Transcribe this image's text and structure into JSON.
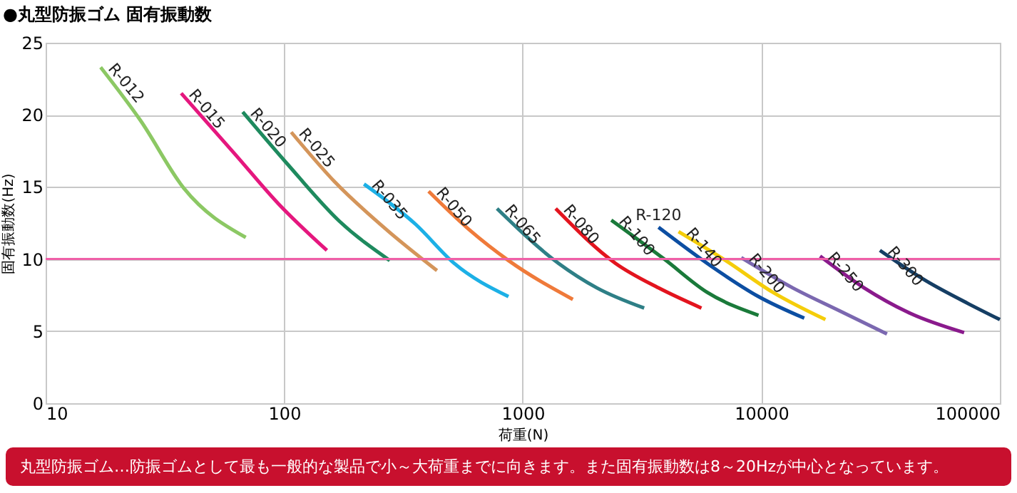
{
  "chart_data": {
    "type": "line",
    "title": "●丸型防振ゴム 固有振動数",
    "xlabel": "荷重(N)",
    "ylabel": "固有振動数(Hz)",
    "log": "x",
    "grid": true,
    "legend": false,
    "xlim": [
      10,
      100000
    ],
    "xticks": [
      10,
      100,
      1000,
      10000,
      100000
    ],
    "ylim": [
      0,
      25
    ],
    "yticks": [
      0,
      5,
      10,
      15,
      20,
      25
    ],
    "ref_lines": [
      {
        "axis": "y",
        "value": 10,
        "color": "#f060a8"
      }
    ],
    "annotations": [
      "丸型防振ゴム…防振ゴムとして最も一般的な製品で小～大荷重までに向きます。また固有振動数は8～20Hzが中心となっています。"
    ],
    "series": [
      {
        "name": "R-012",
        "color": "#8cc864",
        "x": [
          17,
          25,
          38,
          69
        ],
        "values": [
          23.3,
          19.6,
          14.9,
          11.5
        ]
      },
      {
        "name": "R-015",
        "color": "#e5177e",
        "x": [
          37,
          62,
          95,
          151
        ],
        "values": [
          21.5,
          17.3,
          13.8,
          10.6
        ]
      },
      {
        "name": "R-020",
        "color": "#1e8a5e",
        "x": [
          67,
          103,
          171,
          277
        ],
        "values": [
          20.2,
          16.6,
          12.6,
          9.9
        ]
      },
      {
        "name": "R-025",
        "color": "#d4955a",
        "x": [
          107,
          164,
          270,
          437
        ],
        "values": [
          18.8,
          15.3,
          12.0,
          9.2
        ]
      },
      {
        "name": "R-035",
        "color": "#1cb0e6",
        "x": [
          216,
          356,
          516,
          871
        ],
        "values": [
          15.2,
          12.4,
          9.7,
          7.4
        ]
      },
      {
        "name": "R-050",
        "color": "#ef7a3a",
        "x": [
          403,
          600,
          871,
          1622
        ],
        "values": [
          14.7,
          12.0,
          9.9,
          7.2
        ]
      },
      {
        "name": "R-065",
        "color": "#2e7f86",
        "x": [
          780,
          1413,
          2046,
          3228
        ],
        "values": [
          13.5,
          9.7,
          8.0,
          6.6
        ]
      },
      {
        "name": "R-080",
        "color": "#e3141e",
        "x": [
          1374,
          2449,
          3707,
          5610
        ],
        "values": [
          13.5,
          9.7,
          8.0,
          6.6
        ]
      },
      {
        "name": "R-100",
        "color": "#1a7a3a",
        "x": [
          2350,
          3915,
          5916,
          9730
        ],
        "values": [
          12.7,
          10.0,
          7.7,
          6.1
        ]
      },
      {
        "name": "R-120",
        "color": "#0c4ea2",
        "x": [
          3707,
          6170,
          9730,
          15130
        ],
        "values": [
          12.2,
          9.5,
          7.4,
          5.9
        ]
      },
      {
        "name": "R-140",
        "color": "#f5cd0a",
        "x": [
          4497,
          7084,
          11160,
          18570
        ],
        "values": [
          11.9,
          9.9,
          7.7,
          5.8
        ]
      },
      {
        "name": "R-200",
        "color": "#7b68b0",
        "x": [
          8240,
          13550,
          21340,
          33630
        ],
        "values": [
          10.1,
          8.0,
          6.4,
          4.8
        ]
      },
      {
        "name": "R-250",
        "color": "#8a1a8c",
        "x": [
          17630,
          26980,
          42560,
          70800
        ],
        "values": [
          10.2,
          8.0,
          6.2,
          4.9
        ]
      },
      {
        "name": "R-300",
        "color": "#153e64",
        "x": [
          31400,
          48870,
          73800,
          100000
        ],
        "values": [
          10.6,
          8.5,
          6.9,
          5.8
        ]
      }
    ]
  }
}
